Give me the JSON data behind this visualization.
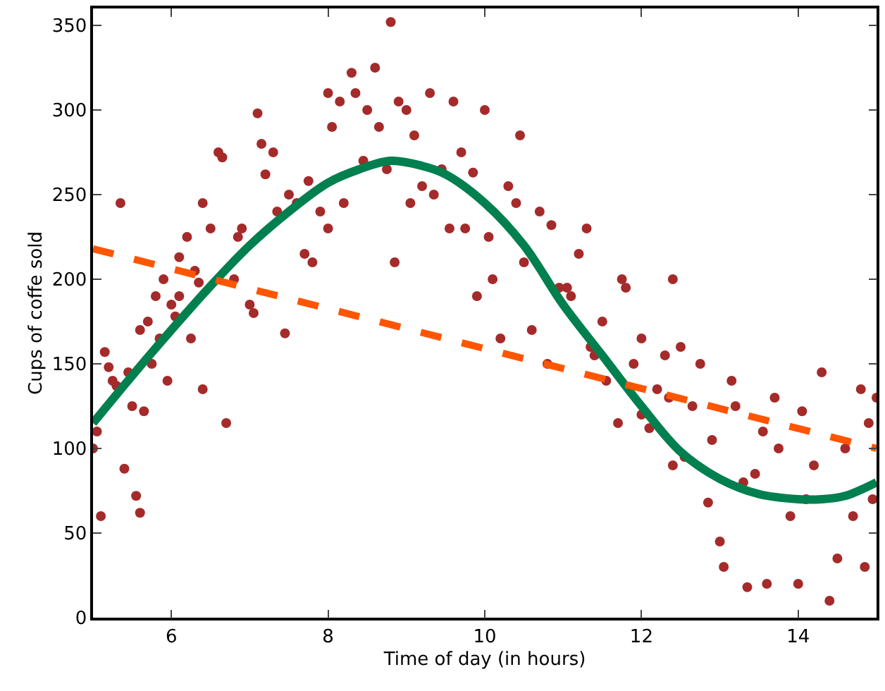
{
  "chart_data": {
    "type": "scatter",
    "xlabel": "Time of day (in hours)",
    "ylabel": "Cups of coffe sold",
    "xlim": [
      5,
      15
    ],
    "xticks": [
      6,
      8,
      10,
      12,
      14
    ],
    "ylim": [
      0,
      360
    ],
    "yticks": [
      0,
      50,
      100,
      150,
      200,
      250,
      300,
      350
    ],
    "series": [
      {
        "marker": "circle",
        "color": "#a52a2a",
        "x": [
          5.0,
          5.05,
          5.1,
          5.15,
          5.2,
          5.25,
          5.3,
          5.35,
          5.4,
          5.45,
          5.5,
          5.55,
          5.6,
          5.6,
          5.65,
          5.7,
          5.75,
          5.8,
          5.85,
          5.9,
          5.95,
          6.0,
          6.05,
          6.1,
          6.1,
          6.2,
          6.25,
          6.3,
          6.35,
          6.4,
          6.4,
          6.5,
          6.6,
          6.65,
          6.7,
          6.8,
          6.85,
          6.9,
          7.0,
          7.05,
          7.1,
          7.15,
          7.2,
          7.3,
          7.35,
          7.45,
          7.5,
          7.6,
          7.7,
          7.75,
          7.8,
          7.9,
          8.0,
          8.0,
          8.05,
          8.15,
          8.2,
          8.3,
          8.35,
          8.45,
          8.5,
          8.6,
          8.65,
          8.75,
          8.8,
          8.85,
          8.9,
          9.0,
          9.05,
          9.1,
          9.2,
          9.3,
          9.35,
          9.45,
          9.55,
          9.6,
          9.7,
          9.75,
          9.85,
          9.9,
          10.0,
          10.05,
          10.1,
          10.2,
          10.3,
          10.4,
          10.45,
          10.5,
          10.6,
          10.7,
          10.8,
          10.85,
          10.95,
          11.05,
          11.1,
          11.2,
          11.3,
          11.35,
          11.4,
          11.5,
          11.55,
          11.7,
          11.75,
          11.8,
          11.9,
          12.0,
          12.0,
          12.1,
          12.2,
          12.3,
          12.35,
          12.4,
          12.4,
          12.5,
          12.55,
          12.65,
          12.75,
          12.85,
          12.9,
          13.0,
          13.05,
          13.15,
          13.2,
          13.3,
          13.35,
          13.45,
          13.55,
          13.6,
          13.7,
          13.75,
          13.9,
          14.0,
          14.05,
          14.1,
          14.2,
          14.3,
          14.4,
          14.5,
          14.6,
          14.7,
          14.8,
          14.85,
          14.9,
          14.95,
          15.0
        ],
        "values": [
          100,
          110,
          60,
          157,
          148,
          140,
          137,
          245,
          88,
          145,
          125,
          72,
          62,
          170,
          122,
          175,
          150,
          190,
          165,
          200,
          140,
          185,
          178,
          190,
          213,
          225,
          165,
          205,
          198,
          135,
          245,
          230,
          275,
          272,
          115,
          200,
          225,
          230,
          185,
          180,
          298,
          280,
          262,
          275,
          240,
          168,
          250,
          245,
          215,
          258,
          210,
          240,
          230,
          310,
          290,
          305,
          245,
          322,
          310,
          270,
          300,
          325,
          290,
          265,
          352,
          210,
          305,
          300,
          245,
          285,
          255,
          310,
          250,
          265,
          230,
          305,
          275,
          230,
          263,
          190,
          300,
          225,
          200,
          165,
          255,
          245,
          285,
          210,
          170,
          240,
          150,
          232,
          195,
          195,
          190,
          215,
          230,
          160,
          155,
          175,
          140,
          115,
          200,
          195,
          150,
          120,
          165,
          112,
          135,
          155,
          130,
          90,
          200,
          160,
          95,
          125,
          150,
          68,
          105,
          45,
          30,
          140,
          125,
          80,
          18,
          85,
          110,
          20,
          130,
          100,
          60,
          20,
          122,
          70,
          90,
          145,
          10,
          35,
          100,
          60,
          135,
          30,
          115,
          70,
          130
        ]
      },
      {
        "type": "line",
        "marker": "none",
        "line_style": "solid",
        "color": "#007f4f",
        "x": [
          5,
          5.5,
          6,
          6.5,
          7,
          7.5,
          8,
          8.4,
          8.8,
          9.2,
          9.5,
          10,
          10.5,
          11,
          11.5,
          12,
          12.5,
          13,
          13.5,
          14,
          14.3,
          14.6,
          15
        ],
        "values": [
          115,
          143,
          170,
          196,
          220,
          240,
          257,
          265,
          270,
          267,
          262,
          245,
          220,
          185,
          155,
          125,
          98,
          82,
          73,
          70,
          70,
          72,
          80
        ]
      },
      {
        "type": "line",
        "marker": "none",
        "line_style": "dashed",
        "color": "#ff5500",
        "x": [
          5,
          15
        ],
        "values": [
          218,
          100
        ]
      }
    ]
  }
}
